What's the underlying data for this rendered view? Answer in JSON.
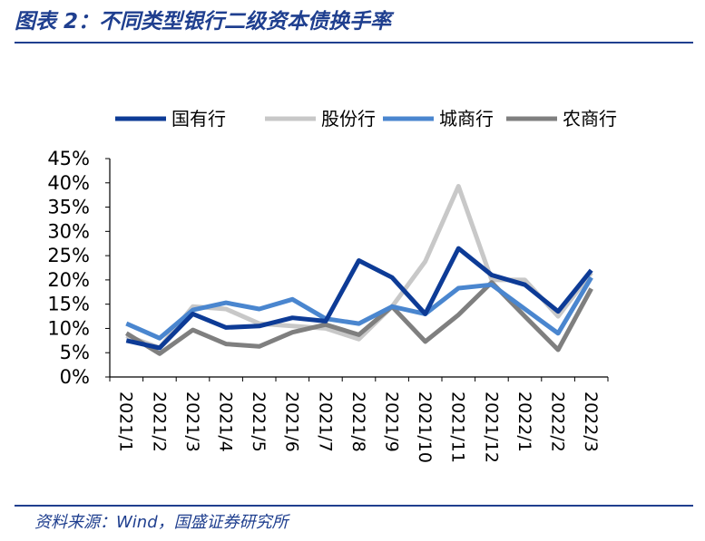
{
  "header": {
    "title": "图表 2：不同类型银行二级资本债换手率"
  },
  "footer": {
    "source": "资料来源：Wind，国盛证券研究所"
  },
  "chart_data": {
    "type": "line",
    "categories": [
      "2021/1",
      "2021/2",
      "2021/3",
      "2021/4",
      "2021/5",
      "2021/6",
      "2021/7",
      "2021/8",
      "2021/9",
      "2021/10",
      "2021/11",
      "2021/12",
      "2022/1",
      "2022/2",
      "2022/3"
    ],
    "y_ticks": [
      "0%",
      "5%",
      "10%",
      "15%",
      "20%",
      "25%",
      "30%",
      "35%",
      "40%",
      "45%"
    ],
    "ylim": [
      0,
      45
    ],
    "y_unit": "%",
    "legend_position": "top",
    "grid": false,
    "series": [
      {
        "name": "国有行",
        "color": "#0d3b96",
        "values": [
          7.5,
          6.0,
          13.0,
          10.2,
          10.5,
          12.2,
          11.5,
          24.0,
          20.5,
          13.0,
          26.5,
          21.0,
          19.0,
          13.5,
          22.0
        ]
      },
      {
        "name": "股份行",
        "color": "#c8c8c8",
        "values": [
          8.5,
          6.0,
          14.5,
          14.0,
          11.0,
          10.5,
          10.0,
          7.8,
          14.5,
          23.8,
          39.3,
          20.0,
          20.0,
          12.5,
          21.5
        ]
      },
      {
        "name": "城商行",
        "color": "#4a86cf",
        "values": [
          11.0,
          8.0,
          13.8,
          15.3,
          14.0,
          16.0,
          12.0,
          11.0,
          14.5,
          13.0,
          18.3,
          19.0,
          14.0,
          9.0,
          20.5
        ]
      },
      {
        "name": "农商行",
        "color": "#7f7f7f",
        "values": [
          9.0,
          4.8,
          9.7,
          6.8,
          6.3,
          9.2,
          10.8,
          8.7,
          14.5,
          7.3,
          12.8,
          19.5,
          12.5,
          5.6,
          18.2
        ]
      }
    ]
  }
}
